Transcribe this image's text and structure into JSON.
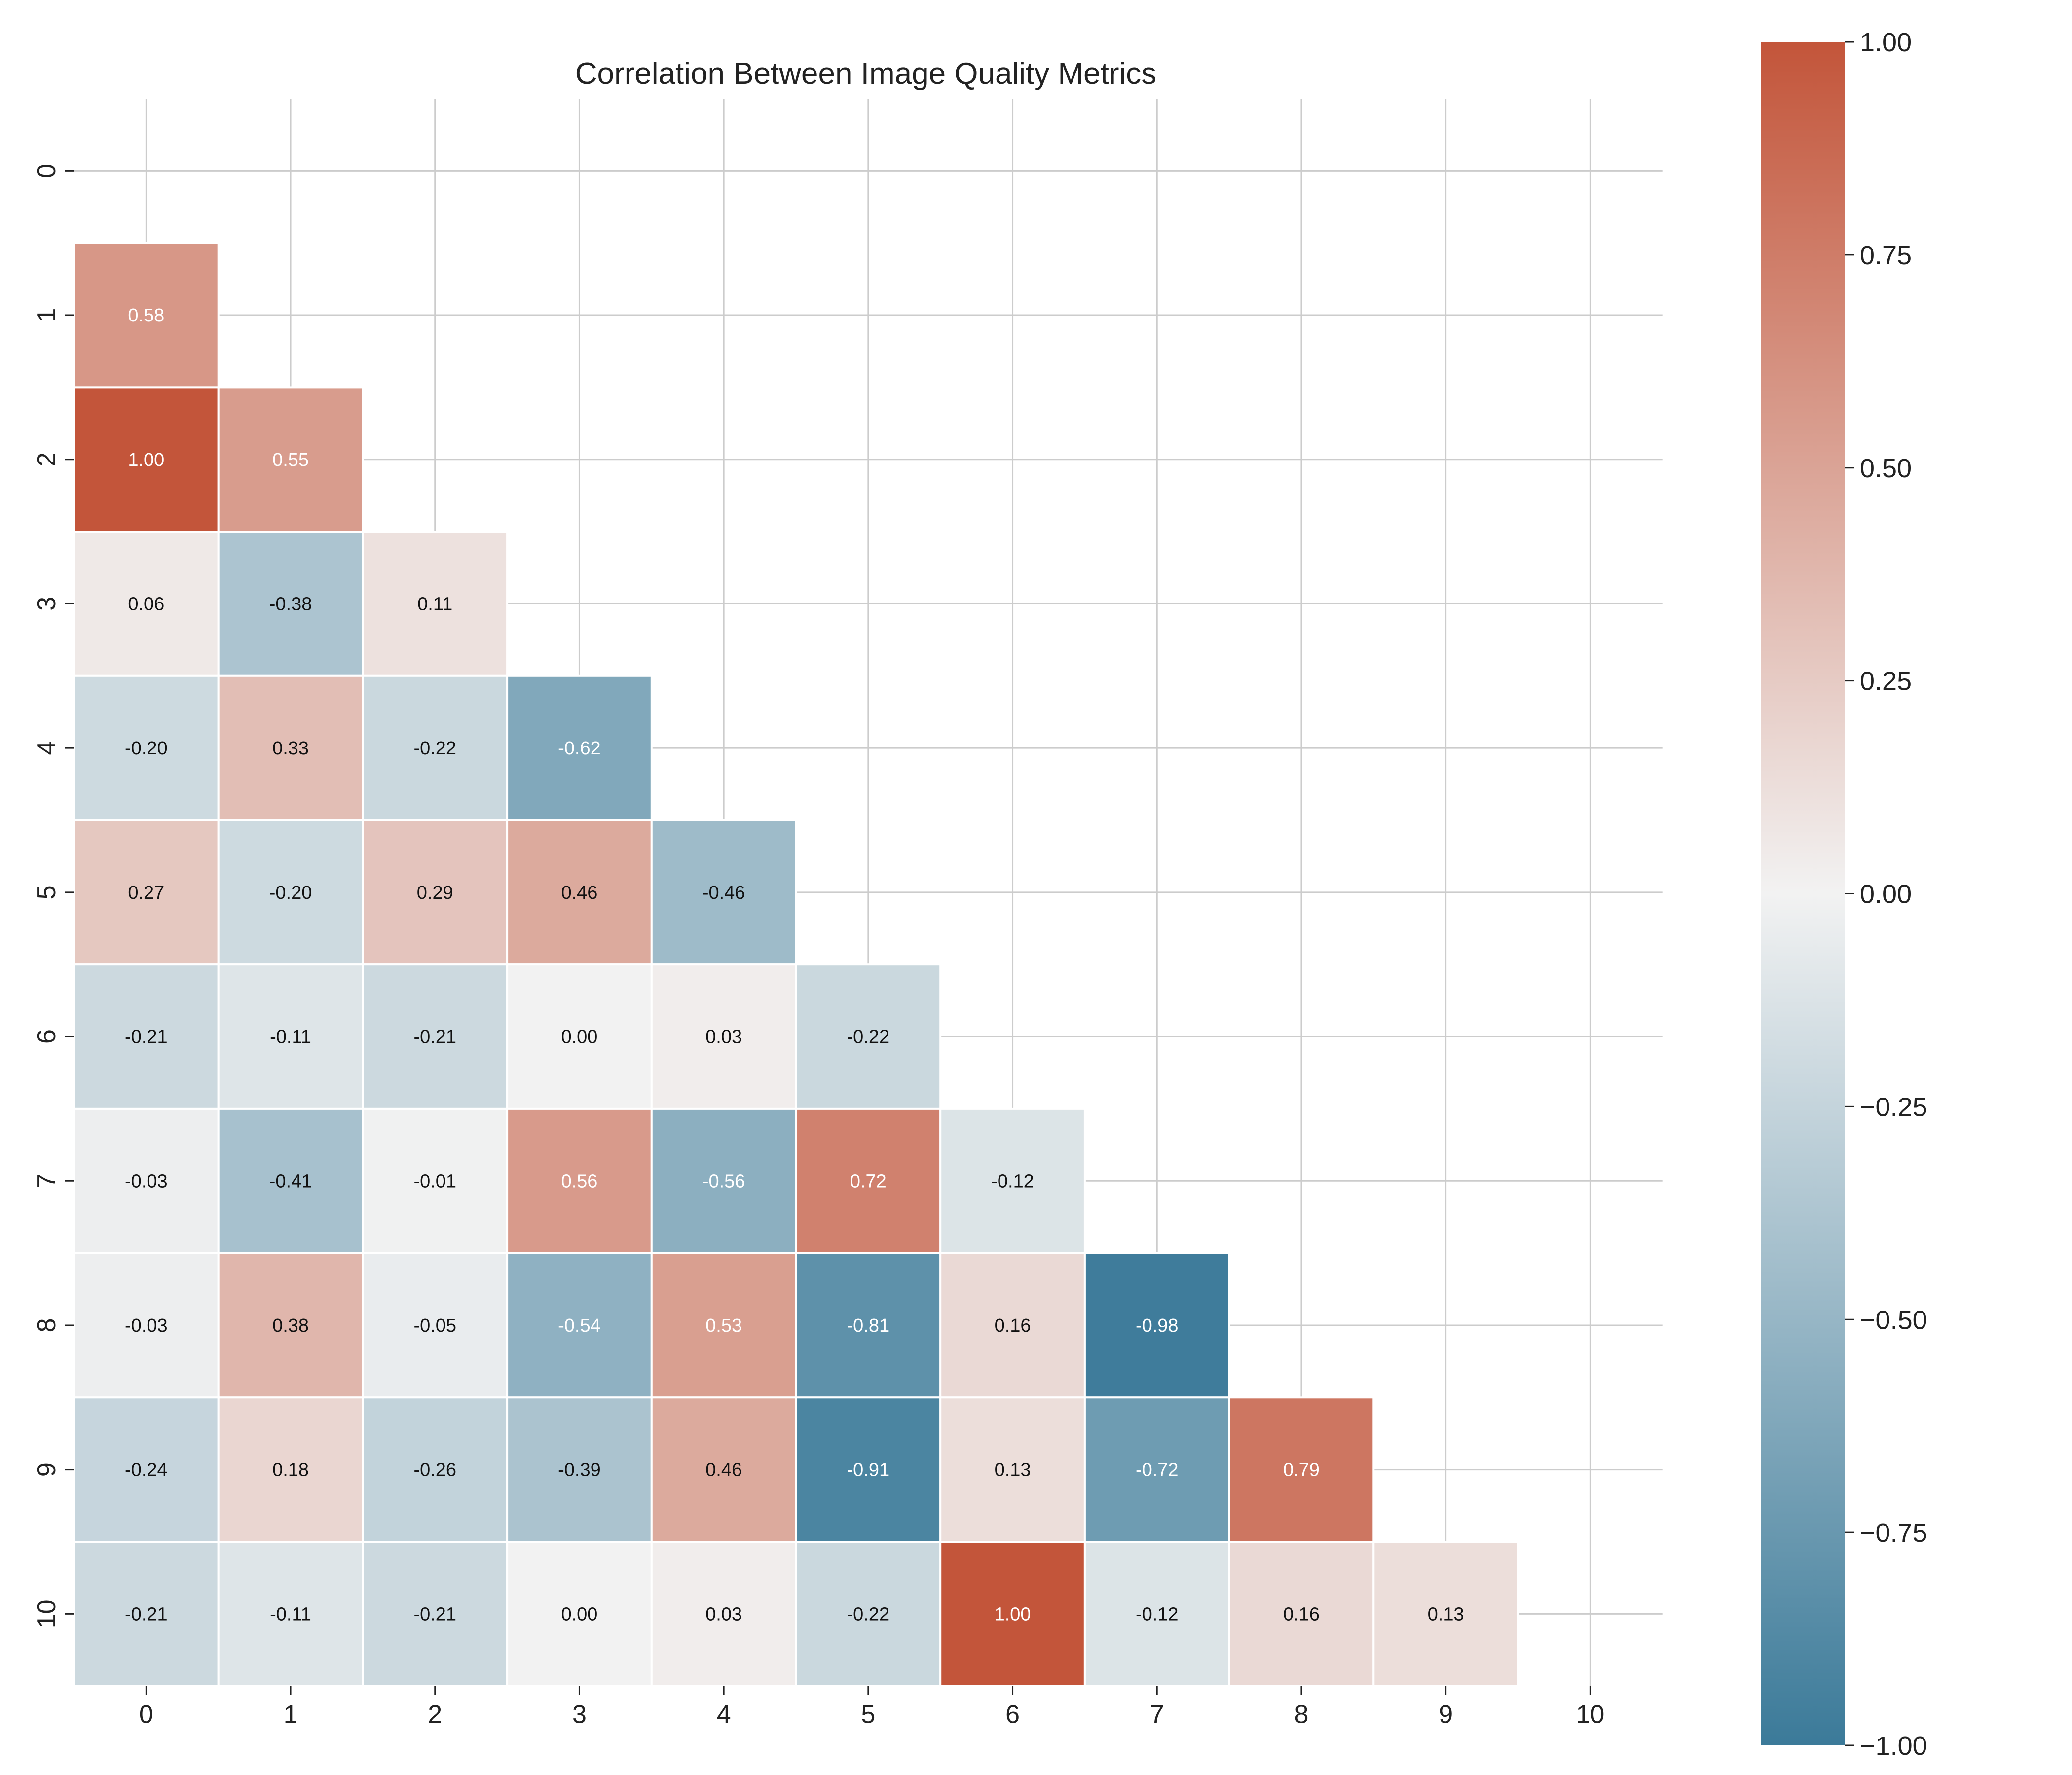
{
  "chart_data": {
    "type": "heatmap",
    "title": "Correlation Between Image Quality Metrics",
    "xlabel": "",
    "ylabel": "",
    "x_categories": [
      "0",
      "1",
      "2",
      "3",
      "4",
      "5",
      "6",
      "7",
      "8",
      "9",
      "10"
    ],
    "y_categories": [
      "0",
      "1",
      "2",
      "3",
      "4",
      "5",
      "6",
      "7",
      "8",
      "9",
      "10"
    ],
    "mask": "upper-triangle-including-diagonal",
    "grid": true,
    "annotations": true,
    "value_format": "0.00",
    "matrix": [
      [
        null,
        null,
        null,
        null,
        null,
        null,
        null,
        null,
        null,
        null,
        null
      ],
      [
        0.58,
        null,
        null,
        null,
        null,
        null,
        null,
        null,
        null,
        null,
        null
      ],
      [
        1.0,
        0.55,
        null,
        null,
        null,
        null,
        null,
        null,
        null,
        null,
        null
      ],
      [
        0.06,
        -0.38,
        0.11,
        null,
        null,
        null,
        null,
        null,
        null,
        null,
        null
      ],
      [
        -0.2,
        0.33,
        -0.22,
        -0.62,
        null,
        null,
        null,
        null,
        null,
        null,
        null
      ],
      [
        0.27,
        -0.2,
        0.29,
        0.46,
        -0.46,
        null,
        null,
        null,
        null,
        null,
        null
      ],
      [
        -0.21,
        -0.11,
        -0.21,
        -0.0,
        0.03,
        -0.22,
        null,
        null,
        null,
        null,
        null
      ],
      [
        -0.03,
        -0.41,
        -0.01,
        0.56,
        -0.56,
        0.72,
        -0.12,
        null,
        null,
        null,
        null
      ],
      [
        -0.03,
        0.38,
        -0.05,
        -0.54,
        0.53,
        -0.81,
        0.16,
        -0.98,
        null,
        null,
        null
      ],
      [
        -0.24,
        0.18,
        -0.26,
        -0.39,
        0.46,
        -0.91,
        0.13,
        -0.72,
        0.79,
        null,
        null
      ],
      [
        -0.21,
        -0.11,
        -0.21,
        -0.0,
        0.03,
        -0.22,
        1.0,
        -0.12,
        0.16,
        0.13,
        null
      ]
    ],
    "colorbar": {
      "range": [
        -1,
        1
      ],
      "ticks": [
        "1.00",
        "0.75",
        "0.50",
        "0.25",
        "0.00",
        "−0.25",
        "−0.50",
        "−0.75",
        "−1.00"
      ],
      "tick_values": [
        1,
        0.75,
        0.5,
        0.25,
        0,
        -0.25,
        -0.5,
        -0.75,
        -1
      ],
      "colormap": "diverging blue-white-red",
      "low_color": "#3b7a99",
      "mid_color": "#f2f2f2",
      "high_color": "#c3553a"
    },
    "colors": {
      "grid": "#cccccc",
      "cell_border": "#ffffff",
      "text_dark": "#111111",
      "text_light": "#ffffff"
    }
  }
}
